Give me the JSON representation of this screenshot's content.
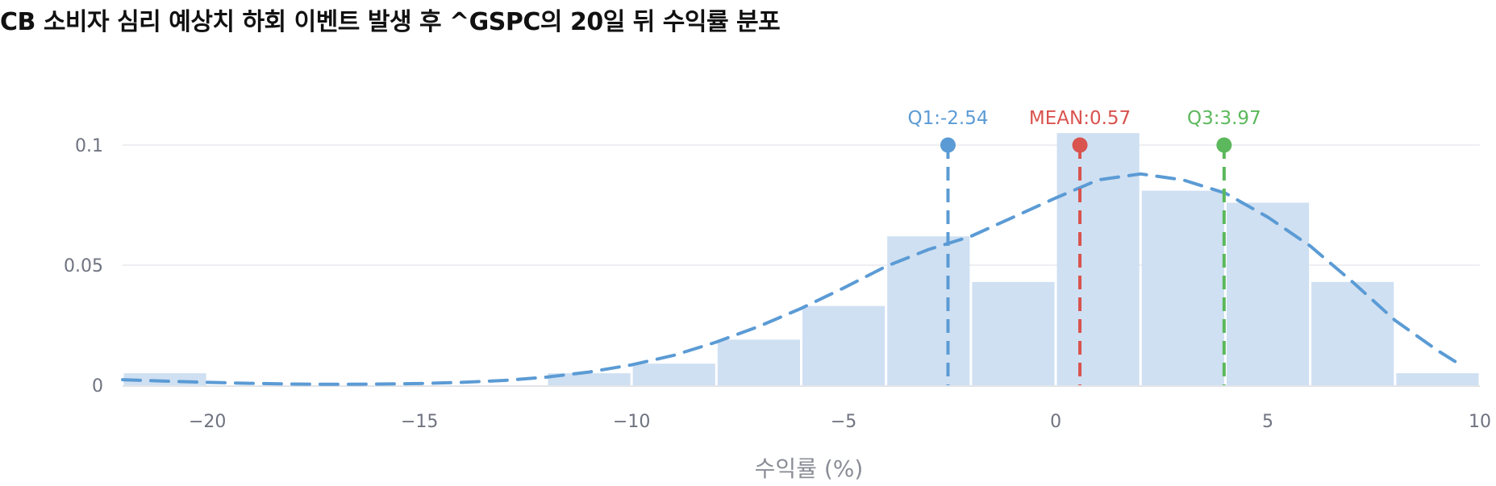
{
  "chart_data": {
    "type": "bar",
    "title": "CB 소비자 심리 예상치 하회 이벤트 발생 후 ^GSPC의 20일 뒤 수익률 분포",
    "xlabel": "수익률 (%)",
    "ylabel": "",
    "xlim": [
      -22,
      10
    ],
    "ylim": [
      0,
      0.12
    ],
    "x_ticks": [
      -20,
      -15,
      -10,
      -5,
      0,
      5,
      10
    ],
    "x_tick_labels": [
      "−20",
      "−15",
      "−10",
      "−5",
      "0",
      "5",
      "10"
    ],
    "y_ticks": [
      0,
      0.05,
      0.1
    ],
    "y_tick_labels": [
      "0",
      "0.05",
      "0.1"
    ],
    "grid": true,
    "bins": [
      {
        "start": -22,
        "end": -20,
        "value": 0.005
      },
      {
        "start": -20,
        "end": -18,
        "value": 0.0
      },
      {
        "start": -18,
        "end": -16,
        "value": 0.0
      },
      {
        "start": -16,
        "end": -14,
        "value": 0.0
      },
      {
        "start": -14,
        "end": -12,
        "value": 0.0
      },
      {
        "start": -12,
        "end": -10,
        "value": 0.005
      },
      {
        "start": -10,
        "end": -8,
        "value": 0.009
      },
      {
        "start": -8,
        "end": -6,
        "value": 0.019
      },
      {
        "start": -6,
        "end": -4,
        "value": 0.033
      },
      {
        "start": -4,
        "end": -2,
        "value": 0.062
      },
      {
        "start": -2,
        "end": 0,
        "value": 0.043
      },
      {
        "start": 0,
        "end": 2,
        "value": 0.105
      },
      {
        "start": 2,
        "end": 4,
        "value": 0.081
      },
      {
        "start": 4,
        "end": 6,
        "value": 0.076
      },
      {
        "start": 6,
        "end": 8,
        "value": 0.043
      },
      {
        "start": 8,
        "end": 10,
        "value": 0.005
      }
    ],
    "density_curve": {
      "x": [
        -22,
        -21,
        -20,
        -19,
        -18,
        -17,
        -16,
        -15,
        -14,
        -13,
        -12,
        -11,
        -10,
        -9,
        -8,
        -7,
        -6,
        -5,
        -4,
        -3,
        -2,
        -1,
        0,
        1,
        2,
        3,
        4,
        5,
        6,
        7,
        8,
        9,
        9.5
      ],
      "y": [
        0.0023,
        0.0017,
        0.0012,
        0.0008,
        0.0005,
        0.0004,
        0.0005,
        0.0007,
        0.0012,
        0.002,
        0.0034,
        0.0055,
        0.0085,
        0.0125,
        0.018,
        0.0245,
        0.032,
        0.0405,
        0.0495,
        0.0565,
        0.062,
        0.07,
        0.078,
        0.0855,
        0.088,
        0.0855,
        0.08,
        0.07,
        0.058,
        0.043,
        0.027,
        0.0145,
        0.009
      ]
    },
    "markers": [
      {
        "label": "Q1:-2.54",
        "x": -2.54,
        "y": 0.1,
        "color": "#5b9bd5"
      },
      {
        "label": "MEAN:0.57",
        "x": 0.57,
        "y": 0.1,
        "color": "#d9534f"
      },
      {
        "label": "Q3:3.97",
        "x": 3.97,
        "y": 0.1,
        "color": "#5cb85c"
      }
    ],
    "colors": {
      "bar_fill": "#cfe0f2",
      "curve": "#5b9bd5",
      "grid": "#e3e5ea",
      "axis": "#d8dbe0"
    }
  }
}
